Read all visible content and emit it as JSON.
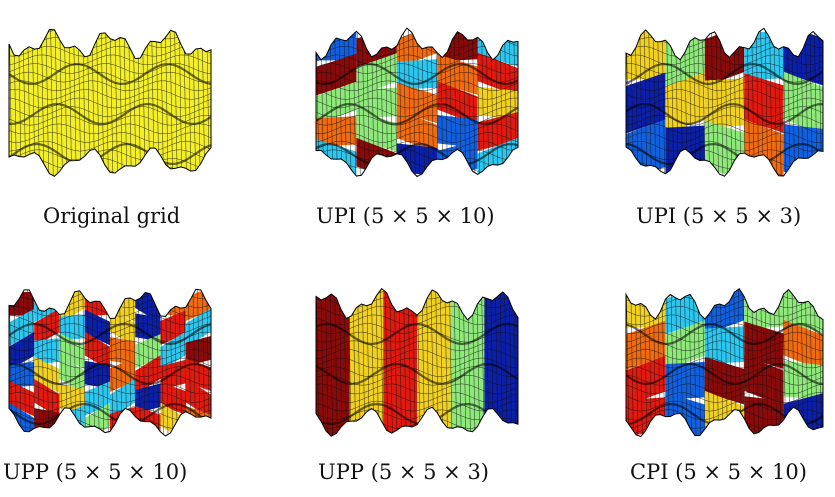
{
  "figure": {
    "panels": [
      {
        "caption": "Original grid",
        "style": "original"
      },
      {
        "caption": "UPI (5 × 5 × 10)",
        "style": "blocks",
        "seed": 3,
        "cols": 5,
        "rows": 5
      },
      {
        "caption": "UPI (5 × 5 × 3)",
        "style": "blocks",
        "seed": 7,
        "cols": 5,
        "rows": 3
      },
      {
        "caption": "UPP (5 × 5 × 10)",
        "style": "blocks",
        "seed": 11,
        "cols": 8,
        "rows": 6
      },
      {
        "caption": "UPP (5 × 5 × 3)",
        "style": "columns",
        "seed": 5,
        "cols": 6,
        "rows": 1
      },
      {
        "caption": "CPI (5 × 5 × 10)",
        "style": "blocks",
        "seed": 19,
        "cols": 5,
        "rows": 4
      }
    ],
    "colors": {
      "original": "#f2ee2a",
      "palette": [
        "#0b1fa8",
        "#1060e0",
        "#2cc6ee",
        "#8ee87a",
        "#f0d020",
        "#f06a10",
        "#e01a10",
        "#8a0a0a"
      ]
    }
  }
}
